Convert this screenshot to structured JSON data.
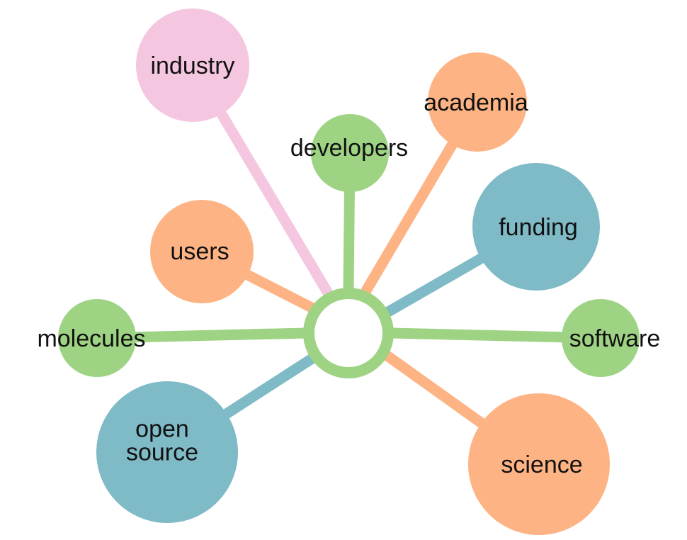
{
  "colors": {
    "green": "#9ED384",
    "orange": "#FDB384",
    "pink": "#F5C6E0",
    "blue": "#7FBAC7",
    "background": "#FFFFFF",
    "text": "#111111"
  },
  "hub": {
    "color": "green"
  },
  "nodes": [
    {
      "id": "industry",
      "label": "industry",
      "color": "pink"
    },
    {
      "id": "academia",
      "label": "academia",
      "color": "orange"
    },
    {
      "id": "developers",
      "label": "developers",
      "color": "green"
    },
    {
      "id": "funding",
      "label": "funding",
      "color": "blue"
    },
    {
      "id": "users",
      "label": "users",
      "color": "orange"
    },
    {
      "id": "molecules",
      "label": "molecules",
      "color": "green"
    },
    {
      "id": "software",
      "label": "software",
      "color": "green"
    },
    {
      "id": "open-source",
      "label": [
        "open",
        "source"
      ],
      "color": "blue"
    },
    {
      "id": "science",
      "label": "science",
      "color": "orange"
    }
  ]
}
